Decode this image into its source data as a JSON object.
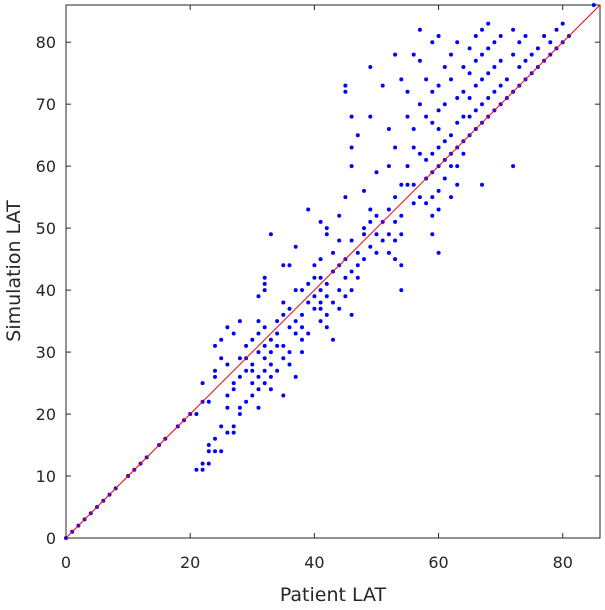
{
  "chart_data": {
    "type": "scatter",
    "xlabel": "Patient LAT",
    "ylabel": "Simulation LAT",
    "xlim": [
      0,
      86
    ],
    "ylim": [
      0,
      86
    ],
    "xticks": [
      0,
      20,
      40,
      60,
      80
    ],
    "yticks": [
      0,
      10,
      20,
      30,
      40,
      50,
      60,
      70,
      80
    ],
    "grid": false,
    "legend": "none",
    "point_color": "#0000ff",
    "reference_line": {
      "from": [
        0,
        0
      ],
      "to": [
        86,
        86
      ],
      "color": "#ff0000"
    },
    "points": [
      [
        0,
        0
      ],
      [
        1,
        1
      ],
      [
        2,
        2
      ],
      [
        3,
        3
      ],
      [
        4,
        4
      ],
      [
        5,
        5
      ],
      [
        6,
        6
      ],
      [
        7,
        7
      ],
      [
        8,
        8
      ],
      [
        10,
        10
      ],
      [
        11,
        11
      ],
      [
        12,
        12
      ],
      [
        13,
        13
      ],
      [
        15,
        15
      ],
      [
        16,
        16
      ],
      [
        18,
        18
      ],
      [
        19,
        19
      ],
      [
        20,
        20
      ],
      [
        21,
        11
      ],
      [
        22,
        11
      ],
      [
        22,
        12
      ],
      [
        23,
        12
      ],
      [
        23,
        14
      ],
      [
        23,
        15
      ],
      [
        24,
        14
      ],
      [
        24,
        16
      ],
      [
        25,
        14
      ],
      [
        21,
        20
      ],
      [
        22,
        22
      ],
      [
        22,
        25
      ],
      [
        23,
        22
      ],
      [
        24,
        26
      ],
      [
        24,
        27
      ],
      [
        24,
        31
      ],
      [
        25,
        18
      ],
      [
        25,
        29
      ],
      [
        25,
        32
      ],
      [
        26,
        21
      ],
      [
        26,
        23
      ],
      [
        26,
        28
      ],
      [
        26,
        34
      ],
      [
        26,
        17
      ],
      [
        27,
        17
      ],
      [
        27,
        18
      ],
      [
        27,
        24
      ],
      [
        27,
        25
      ],
      [
        27,
        33
      ],
      [
        28,
        20
      ],
      [
        28,
        21
      ],
      [
        28,
        26
      ],
      [
        28,
        29
      ],
      [
        28,
        35
      ],
      [
        29,
        22
      ],
      [
        29,
        27
      ],
      [
        29,
        29
      ],
      [
        29,
        31
      ],
      [
        30,
        23
      ],
      [
        30,
        25
      ],
      [
        30,
        27
      ],
      [
        30,
        28
      ],
      [
        30,
        32
      ],
      [
        31,
        21
      ],
      [
        31,
        24
      ],
      [
        31,
        26
      ],
      [
        31,
        30
      ],
      [
        31,
        33
      ],
      [
        31,
        35
      ],
      [
        31,
        39
      ],
      [
        32,
        25
      ],
      [
        32,
        27
      ],
      [
        32,
        29
      ],
      [
        32,
        31
      ],
      [
        32,
        34
      ],
      [
        32,
        40
      ],
      [
        32,
        41
      ],
      [
        32,
        42
      ],
      [
        33,
        24
      ],
      [
        33,
        26
      ],
      [
        33,
        28
      ],
      [
        33,
        30
      ],
      [
        33,
        32
      ],
      [
        33,
        49
      ],
      [
        34,
        27
      ],
      [
        34,
        31
      ],
      [
        34,
        33
      ],
      [
        34,
        35
      ],
      [
        35,
        23
      ],
      [
        35,
        29
      ],
      [
        35,
        31
      ],
      [
        35,
        36
      ],
      [
        35,
        38
      ],
      [
        35,
        44
      ],
      [
        36,
        28
      ],
      [
        36,
        30
      ],
      [
        36,
        34
      ],
      [
        36,
        37
      ],
      [
        36,
        44
      ],
      [
        37,
        26
      ],
      [
        37,
        33
      ],
      [
        37,
        35
      ],
      [
        37,
        40
      ],
      [
        37,
        47
      ],
      [
        38,
        30
      ],
      [
        38,
        32
      ],
      [
        38,
        34
      ],
      [
        38,
        36
      ],
      [
        38,
        40
      ],
      [
        39,
        33
      ],
      [
        39,
        38
      ],
      [
        39,
        41
      ],
      [
        39,
        53
      ],
      [
        40,
        37
      ],
      [
        40,
        39
      ],
      [
        40,
        42
      ],
      [
        40,
        44
      ],
      [
        41,
        35
      ],
      [
        41,
        37
      ],
      [
        41,
        38
      ],
      [
        41,
        40
      ],
      [
        41,
        42
      ],
      [
        41,
        45
      ],
      [
        41,
        51
      ],
      [
        42,
        34
      ],
      [
        42,
        36
      ],
      [
        42,
        39
      ],
      [
        42,
        41
      ],
      [
        42,
        49
      ],
      [
        42,
        50
      ],
      [
        43,
        32
      ],
      [
        43,
        38
      ],
      [
        43,
        43
      ],
      [
        43,
        46
      ],
      [
        44,
        37
      ],
      [
        44,
        40
      ],
      [
        44,
        44
      ],
      [
        44,
        48
      ],
      [
        44,
        52
      ],
      [
        45,
        39
      ],
      [
        45,
        42
      ],
      [
        45,
        45
      ],
      [
        45,
        55
      ],
      [
        45,
        73
      ],
      [
        45,
        72
      ],
      [
        46,
        36
      ],
      [
        46,
        40
      ],
      [
        46,
        43
      ],
      [
        46,
        48
      ],
      [
        46,
        60
      ],
      [
        46,
        63
      ],
      [
        46,
        68
      ],
      [
        47,
        42
      ],
      [
        47,
        44
      ],
      [
        47,
        46
      ],
      [
        47,
        65
      ],
      [
        48,
        45
      ],
      [
        48,
        49
      ],
      [
        48,
        50
      ],
      [
        48,
        56
      ],
      [
        49,
        47
      ],
      [
        49,
        51
      ],
      [
        49,
        53
      ],
      [
        49,
        68
      ],
      [
        49,
        76
      ],
      [
        50,
        46
      ],
      [
        50,
        49
      ],
      [
        50,
        52
      ],
      [
        50,
        59
      ],
      [
        51,
        48
      ],
      [
        51,
        51
      ],
      [
        51,
        73
      ],
      [
        52,
        46
      ],
      [
        52,
        49
      ],
      [
        52,
        53
      ],
      [
        52,
        60
      ],
      [
        52,
        66
      ],
      [
        53,
        45
      ],
      [
        53,
        48
      ],
      [
        53,
        51
      ],
      [
        53,
        55
      ],
      [
        53,
        63
      ],
      [
        53,
        78
      ],
      [
        54,
        40
      ],
      [
        54,
        44
      ],
      [
        54,
        49
      ],
      [
        54,
        52
      ],
      [
        54,
        57
      ],
      [
        54,
        74
      ],
      [
        55,
        57
      ],
      [
        55,
        60
      ],
      [
        55,
        68
      ],
      [
        55,
        72
      ],
      [
        56,
        54
      ],
      [
        56,
        57
      ],
      [
        56,
        63
      ],
      [
        56,
        66
      ],
      [
        56,
        78
      ],
      [
        57,
        55
      ],
      [
        57,
        62
      ],
      [
        57,
        70
      ],
      [
        57,
        77
      ],
      [
        57,
        82
      ],
      [
        58,
        54
      ],
      [
        58,
        58
      ],
      [
        58,
        61
      ],
      [
        58,
        68
      ],
      [
        58,
        74
      ],
      [
        59,
        49
      ],
      [
        59,
        52
      ],
      [
        59,
        55
      ],
      [
        59,
        59
      ],
      [
        59,
        62
      ],
      [
        59,
        67
      ],
      [
        59,
        72
      ],
      [
        59,
        80
      ],
      [
        60,
        46
      ],
      [
        60,
        53
      ],
      [
        60,
        56
      ],
      [
        60,
        60
      ],
      [
        60,
        63
      ],
      [
        60,
        66
      ],
      [
        60,
        69
      ],
      [
        60,
        73
      ],
      [
        60,
        81
      ],
      [
        61,
        58
      ],
      [
        61,
        61
      ],
      [
        61,
        64
      ],
      [
        61,
        70
      ],
      [
        61,
        76
      ],
      [
        62,
        55
      ],
      [
        62,
        60
      ],
      [
        62,
        62
      ],
      [
        62,
        65
      ],
      [
        62,
        74
      ],
      [
        62,
        78
      ],
      [
        63,
        57
      ],
      [
        63,
        60
      ],
      [
        63,
        63
      ],
      [
        63,
        67
      ],
      [
        63,
        71
      ],
      [
        63,
        80
      ],
      [
        64,
        62
      ],
      [
        64,
        64
      ],
      [
        64,
        68
      ],
      [
        64,
        72
      ],
      [
        64,
        76
      ],
      [
        65,
        65
      ],
      [
        65,
        68
      ],
      [
        65,
        71
      ],
      [
        65,
        75
      ],
      [
        65,
        79
      ],
      [
        66,
        66
      ],
      [
        66,
        69
      ],
      [
        66,
        73
      ],
      [
        66,
        77
      ],
      [
        66,
        81
      ],
      [
        67,
        57
      ],
      [
        67,
        67
      ],
      [
        67,
        70
      ],
      [
        67,
        74
      ],
      [
        67,
        78
      ],
      [
        67,
        82
      ],
      [
        68,
        68
      ],
      [
        68,
        71
      ],
      [
        68,
        75
      ],
      [
        68,
        79
      ],
      [
        68,
        83
      ],
      [
        69,
        69
      ],
      [
        69,
        72
      ],
      [
        69,
        76
      ],
      [
        69,
        80
      ],
      [
        70,
        70
      ],
      [
        70,
        73
      ],
      [
        70,
        77
      ],
      [
        70,
        81
      ],
      [
        71,
        71
      ],
      [
        71,
        74
      ],
      [
        72,
        60
      ],
      [
        72,
        72
      ],
      [
        72,
        78
      ],
      [
        72,
        82
      ],
      [
        73,
        73
      ],
      [
        73,
        76
      ],
      [
        73,
        80
      ],
      [
        74,
        74
      ],
      [
        74,
        77
      ],
      [
        74,
        81
      ],
      [
        75,
        75
      ],
      [
        75,
        78
      ],
      [
        76,
        76
      ],
      [
        76,
        79
      ],
      [
        77,
        77
      ],
      [
        77,
        81
      ],
      [
        78,
        78
      ],
      [
        78,
        80
      ],
      [
        79,
        79
      ],
      [
        79,
        82
      ],
      [
        80,
        80
      ],
      [
        80,
        83
      ],
      [
        81,
        81
      ],
      [
        85,
        86
      ]
    ]
  }
}
